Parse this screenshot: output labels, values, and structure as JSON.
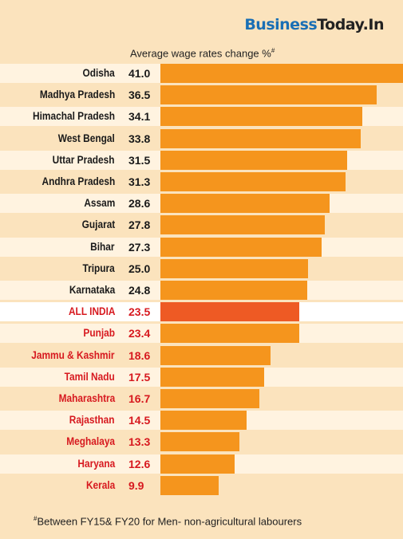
{
  "brand": {
    "part1": "Business",
    "part2": "Today.In",
    "color1": "#1a6fb5",
    "color2": "#222222"
  },
  "subtitle": "Average wage rates change %",
  "subtitle_mark": "#",
  "footnote": "Between FY15& FY20 for Men- non-agricultural labourers",
  "footnote_mark": "#",
  "colors": {
    "bar": "#f5951d",
    "bar_highlight": "#ee5a24",
    "text_default": "#1a1a1a",
    "text_red": "#d7191f"
  },
  "chart_data": {
    "type": "bar",
    "orientation": "horizontal",
    "title": "Average wage rates change %#",
    "categories": [
      "Odisha",
      "Madhya Pradesh",
      "Himachal Pradesh",
      "West Bengal",
      "Uttar Pradesh",
      "Andhra Pradesh",
      "Assam",
      "Gujarat",
      "Bihar",
      "Tripura",
      "Karnataka",
      "ALL INDIA",
      "Punjab",
      "Jammu & Kashmir",
      "Tamil Nadu",
      "Maharashtra",
      "Rajasthan",
      "Meghalaya",
      "Haryana",
      "Kerala"
    ],
    "values": [
      41.0,
      36.5,
      34.1,
      33.8,
      31.5,
      31.3,
      28.6,
      27.8,
      27.3,
      25.0,
      24.8,
      23.5,
      23.4,
      18.6,
      17.5,
      16.7,
      14.5,
      13.3,
      12.6,
      9.9
    ],
    "value_labels": [
      "41.0",
      "36.5",
      "34.1",
      "33.8",
      "31.5",
      "31.3",
      "28.6",
      "27.8",
      "27.3",
      "25.0",
      "24.8",
      "23.5",
      "23.4",
      "18.6",
      "17.5",
      "16.7",
      "14.5",
      "13.3",
      "12.6",
      "9.9"
    ],
    "highlight": "ALL INDIA",
    "below_average_in_red": true,
    "xlim": [
      0,
      41
    ]
  }
}
